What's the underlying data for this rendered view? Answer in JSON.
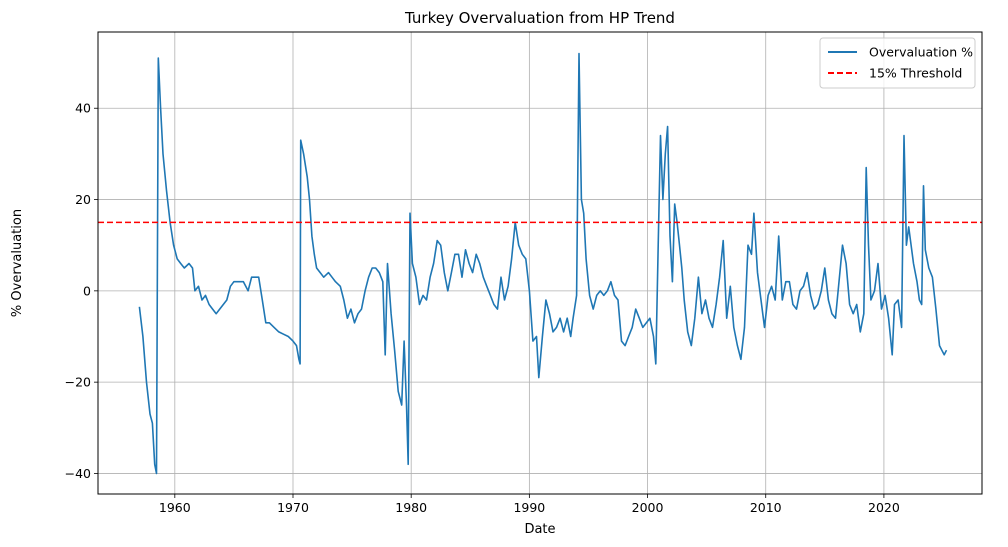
{
  "chart_data": {
    "type": "line",
    "title": "Turkey Overvaluation from HP Trend",
    "xlabel": "Date",
    "ylabel": "% Overvaluation",
    "xlim": [
      1953.5,
      2028.3
    ],
    "ylim": [
      -44.5,
      56.7
    ],
    "x_ticks": [
      1960,
      1970,
      1980,
      1990,
      2000,
      2010,
      2020
    ],
    "y_ticks": [
      -40,
      -20,
      0,
      20,
      40
    ],
    "grid": true,
    "legend_position": "top-right",
    "series": [
      {
        "name": "Overvaluation %",
        "color": "#1f77b4",
        "style": "solid",
        "points": [
          [
            1957.0,
            -3.5
          ],
          [
            1957.3,
            -10
          ],
          [
            1957.6,
            -20
          ],
          [
            1957.9,
            -27
          ],
          [
            1958.1,
            -29
          ],
          [
            1958.3,
            -38
          ],
          [
            1958.45,
            -40
          ],
          [
            1958.6,
            51
          ],
          [
            1958.8,
            40
          ],
          [
            1959.0,
            30
          ],
          [
            1959.3,
            22
          ],
          [
            1959.6,
            15
          ],
          [
            1959.9,
            10
          ],
          [
            1960.2,
            7
          ],
          [
            1960.5,
            6
          ],
          [
            1960.8,
            5
          ],
          [
            1961.2,
            6
          ],
          [
            1961.5,
            5
          ],
          [
            1961.7,
            0
          ],
          [
            1962.0,
            1
          ],
          [
            1962.3,
            -2
          ],
          [
            1962.6,
            -1
          ],
          [
            1962.9,
            -3
          ],
          [
            1963.2,
            -4
          ],
          [
            1963.5,
            -5
          ],
          [
            1963.8,
            -4
          ],
          [
            1964.1,
            -3
          ],
          [
            1964.4,
            -2
          ],
          [
            1964.7,
            1
          ],
          [
            1965.0,
            2
          ],
          [
            1965.4,
            2
          ],
          [
            1965.8,
            2
          ],
          [
            1966.2,
            0
          ],
          [
            1966.5,
            3
          ],
          [
            1966.8,
            3
          ],
          [
            1967.1,
            3
          ],
          [
            1967.4,
            -2
          ],
          [
            1967.7,
            -7
          ],
          [
            1968.0,
            -7
          ],
          [
            1968.4,
            -8
          ],
          [
            1968.8,
            -9
          ],
          [
            1969.2,
            -9.5
          ],
          [
            1969.6,
            -10
          ],
          [
            1970.0,
            -11
          ],
          [
            1970.3,
            -12
          ],
          [
            1970.5,
            -15
          ],
          [
            1970.6,
            -16
          ],
          [
            1970.65,
            33
          ],
          [
            1970.9,
            30
          ],
          [
            1971.2,
            25
          ],
          [
            1971.4,
            20
          ],
          [
            1971.6,
            12
          ],
          [
            1971.8,
            8
          ],
          [
            1972.0,
            5
          ],
          [
            1972.3,
            4
          ],
          [
            1972.6,
            3
          ],
          [
            1973.0,
            4
          ],
          [
            1973.3,
            3
          ],
          [
            1973.6,
            2
          ],
          [
            1974.0,
            1
          ],
          [
            1974.3,
            -2
          ],
          [
            1974.6,
            -6
          ],
          [
            1974.9,
            -4
          ],
          [
            1975.2,
            -7
          ],
          [
            1975.5,
            -5
          ],
          [
            1975.8,
            -4
          ],
          [
            1976.1,
            0
          ],
          [
            1976.4,
            3
          ],
          [
            1976.7,
            5
          ],
          [
            1977.0,
            5
          ],
          [
            1977.3,
            4
          ],
          [
            1977.6,
            2
          ],
          [
            1977.8,
            -14
          ],
          [
            1978.0,
            6
          ],
          [
            1978.3,
            -5
          ],
          [
            1978.6,
            -13
          ],
          [
            1978.9,
            -22
          ],
          [
            1979.2,
            -25
          ],
          [
            1979.4,
            -11
          ],
          [
            1979.6,
            -25
          ],
          [
            1979.75,
            -38
          ],
          [
            1979.9,
            17
          ],
          [
            1980.1,
            6
          ],
          [
            1980.4,
            3
          ],
          [
            1980.7,
            -3
          ],
          [
            1981.0,
            -1
          ],
          [
            1981.3,
            -2
          ],
          [
            1981.6,
            3
          ],
          [
            1981.9,
            6
          ],
          [
            1982.2,
            11
          ],
          [
            1982.5,
            10
          ],
          [
            1982.8,
            4
          ],
          [
            1983.1,
            0
          ],
          [
            1983.4,
            4
          ],
          [
            1983.7,
            8
          ],
          [
            1984.0,
            8
          ],
          [
            1984.3,
            3
          ],
          [
            1984.6,
            9
          ],
          [
            1984.9,
            6
          ],
          [
            1985.2,
            4
          ],
          [
            1985.5,
            8
          ],
          [
            1985.8,
            6
          ],
          [
            1986.1,
            3
          ],
          [
            1986.4,
            1
          ],
          [
            1986.7,
            -1
          ],
          [
            1987.0,
            -3
          ],
          [
            1987.3,
            -4
          ],
          [
            1987.6,
            3
          ],
          [
            1987.9,
            -2
          ],
          [
            1988.2,
            1
          ],
          [
            1988.5,
            7
          ],
          [
            1988.8,
            15
          ],
          [
            1989.1,
            10
          ],
          [
            1989.4,
            8
          ],
          [
            1989.7,
            7
          ],
          [
            1990.0,
            0
          ],
          [
            1990.3,
            -11
          ],
          [
            1990.6,
            -10
          ],
          [
            1990.8,
            -19
          ],
          [
            1991.1,
            -10
          ],
          [
            1991.4,
            -2
          ],
          [
            1991.7,
            -5
          ],
          [
            1992.0,
            -9
          ],
          [
            1992.3,
            -8
          ],
          [
            1992.6,
            -6
          ],
          [
            1992.9,
            -9
          ],
          [
            1993.2,
            -6
          ],
          [
            1993.5,
            -10
          ],
          [
            1993.7,
            -6
          ],
          [
            1994.0,
            -1
          ],
          [
            1994.2,
            52
          ],
          [
            1994.4,
            20
          ],
          [
            1994.6,
            17
          ],
          [
            1994.8,
            7
          ],
          [
            1995.1,
            -1
          ],
          [
            1995.4,
            -4
          ],
          [
            1995.7,
            -1
          ],
          [
            1996.0,
            0
          ],
          [
            1996.3,
            -1
          ],
          [
            1996.6,
            0
          ],
          [
            1996.9,
            2
          ],
          [
            1997.2,
            -1
          ],
          [
            1997.5,
            -2
          ],
          [
            1997.8,
            -11
          ],
          [
            1998.1,
            -12
          ],
          [
            1998.4,
            -10
          ],
          [
            1998.7,
            -8
          ],
          [
            1999.0,
            -4
          ],
          [
            1999.3,
            -6
          ],
          [
            1999.6,
            -8
          ],
          [
            1999.9,
            -7
          ],
          [
            2000.2,
            -6
          ],
          [
            2000.5,
            -10
          ],
          [
            2000.7,
            -16
          ],
          [
            2000.9,
            10
          ],
          [
            2001.1,
            34
          ],
          [
            2001.3,
            20
          ],
          [
            2001.5,
            30
          ],
          [
            2001.7,
            36
          ],
          [
            2001.9,
            12
          ],
          [
            2002.1,
            2
          ],
          [
            2002.3,
            19
          ],
          [
            2002.5,
            15
          ],
          [
            2002.7,
            10
          ],
          [
            2002.9,
            5
          ],
          [
            2003.1,
            -2
          ],
          [
            2003.4,
            -9
          ],
          [
            2003.7,
            -12
          ],
          [
            2004.0,
            -6
          ],
          [
            2004.3,
            3
          ],
          [
            2004.6,
            -5
          ],
          [
            2004.9,
            -2
          ],
          [
            2005.2,
            -6
          ],
          [
            2005.5,
            -8
          ],
          [
            2005.8,
            -3
          ],
          [
            2006.1,
            3
          ],
          [
            2006.4,
            11
          ],
          [
            2006.7,
            -6
          ],
          [
            2007.0,
            1
          ],
          [
            2007.3,
            -8
          ],
          [
            2007.6,
            -12
          ],
          [
            2007.9,
            -15
          ],
          [
            2008.2,
            -8
          ],
          [
            2008.5,
            10
          ],
          [
            2008.8,
            8
          ],
          [
            2009.0,
            17
          ],
          [
            2009.3,
            4
          ],
          [
            2009.6,
            -2
          ],
          [
            2009.9,
            -8
          ],
          [
            2010.2,
            -1
          ],
          [
            2010.5,
            1
          ],
          [
            2010.8,
            -2
          ],
          [
            2011.1,
            12
          ],
          [
            2011.4,
            -2
          ],
          [
            2011.7,
            2
          ],
          [
            2012.0,
            2
          ],
          [
            2012.3,
            -3
          ],
          [
            2012.6,
            -4
          ],
          [
            2012.9,
            0
          ],
          [
            2013.2,
            1
          ],
          [
            2013.5,
            4
          ],
          [
            2013.8,
            -1
          ],
          [
            2014.1,
            -4
          ],
          [
            2014.4,
            -3
          ],
          [
            2014.7,
            0
          ],
          [
            2015.0,
            5
          ],
          [
            2015.3,
            -2
          ],
          [
            2015.6,
            -5
          ],
          [
            2015.9,
            -6
          ],
          [
            2016.2,
            2
          ],
          [
            2016.5,
            10
          ],
          [
            2016.8,
            6
          ],
          [
            2017.1,
            -3
          ],
          [
            2017.4,
            -5
          ],
          [
            2017.7,
            -3
          ],
          [
            2018.0,
            -9
          ],
          [
            2018.3,
            -5
          ],
          [
            2018.5,
            27
          ],
          [
            2018.7,
            10
          ],
          [
            2018.9,
            -2
          ],
          [
            2019.2,
            0
          ],
          [
            2019.5,
            6
          ],
          [
            2019.8,
            -4
          ],
          [
            2020.1,
            -1
          ],
          [
            2020.4,
            -6
          ],
          [
            2020.7,
            -14
          ],
          [
            2020.9,
            -3
          ],
          [
            2021.2,
            -2
          ],
          [
            2021.5,
            -8
          ],
          [
            2021.7,
            34
          ],
          [
            2021.9,
            10
          ],
          [
            2022.1,
            14
          ],
          [
            2022.3,
            10
          ],
          [
            2022.5,
            6
          ],
          [
            2022.8,
            2
          ],
          [
            2023.0,
            -2
          ],
          [
            2023.2,
            -3
          ],
          [
            2023.35,
            23
          ],
          [
            2023.5,
            9
          ],
          [
            2023.8,
            5
          ],
          [
            2024.1,
            3
          ],
          [
            2024.4,
            -4
          ],
          [
            2024.7,
            -12
          ],
          [
            2024.9,
            -13
          ],
          [
            2025.1,
            -14
          ],
          [
            2025.3,
            -13
          ]
        ]
      },
      {
        "name": "15% Threshold",
        "color": "#ff0000",
        "style": "dashed",
        "y": 15
      }
    ]
  }
}
